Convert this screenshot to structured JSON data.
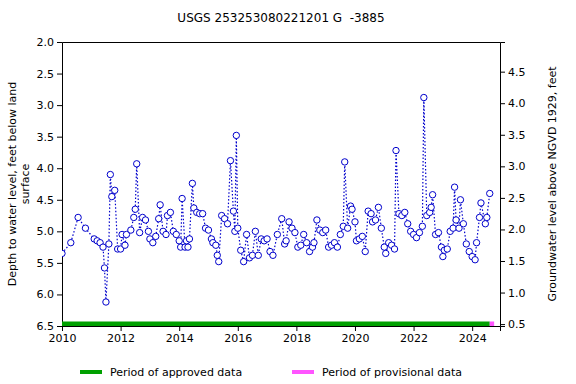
{
  "chart_data": {
    "type": "scatter",
    "title": "USGS 253253080221201 G  -3885",
    "ylabel": [
      "Depth to water level, feet below land",
      "surface"
    ],
    "y2label": "Groundwater level above NGVD 1929, feet",
    "xlim": [
      2010,
      2024.95
    ],
    "xticks": [
      2010,
      2012,
      2014,
      2016,
      2018,
      2020,
      2022,
      2024
    ],
    "ylim": [
      2.0,
      6.5
    ],
    "yticks": [
      {
        "value": 2.0,
        "label": "2.0"
      },
      2.5,
      {
        "value": 3.0,
        "label": "3.0"
      },
      3.5,
      {
        "value": 4.0,
        "label": "4.0"
      },
      4.5,
      {
        "value": 5.0,
        "label": "5.0"
      },
      5.5,
      {
        "value": 6.0,
        "label": "6.0"
      },
      6.5
    ],
    "y2lim": [
      0.47,
      4.97
    ],
    "y2ticks": [
      0.5,
      {
        "value": 1.0,
        "label": "1.0"
      },
      1.5,
      {
        "value": 2.0,
        "label": "2.0"
      },
      2.5,
      {
        "value": 3.0,
        "label": "3.0"
      },
      3.5,
      {
        "value": 4.0,
        "label": "4.0"
      },
      4.5
    ],
    "grid": false,
    "x": [
      2010.0,
      2010.3,
      2010.55,
      2010.8,
      2011.1,
      2011.2,
      2011.3,
      2011.4,
      2011.45,
      2011.5,
      2011.6,
      2011.65,
      2011.7,
      2011.8,
      2011.9,
      2012.0,
      2012.05,
      2012.15,
      2012.2,
      2012.35,
      2012.45,
      2012.5,
      2012.55,
      2012.65,
      2012.75,
      2012.85,
      2012.95,
      2013.0,
      2013.1,
      2013.2,
      2013.3,
      2013.35,
      2013.45,
      2013.55,
      2013.6,
      2013.7,
      2013.8,
      2013.9,
      2014.0,
      2014.05,
      2014.1,
      2014.2,
      2014.25,
      2014.3,
      2014.35,
      2014.45,
      2014.5,
      2014.6,
      2014.7,
      2014.8,
      2014.9,
      2015.0,
      2015.1,
      2015.15,
      2015.25,
      2015.3,
      2015.35,
      2015.45,
      2015.55,
      2015.65,
      2015.75,
      2015.85,
      2015.9,
      2015.95,
      2016.0,
      2016.1,
      2016.2,
      2016.3,
      2016.4,
      2016.5,
      2016.6,
      2016.7,
      2016.8,
      2016.9,
      2017.0,
      2017.1,
      2017.2,
      2017.35,
      2017.5,
      2017.6,
      2017.65,
      2017.75,
      2017.85,
      2017.95,
      2018.05,
      2018.15,
      2018.25,
      2018.35,
      2018.45,
      2018.55,
      2018.6,
      2018.7,
      2018.8,
      2018.9,
      2019.0,
      2019.1,
      2019.2,
      2019.3,
      2019.4,
      2019.5,
      2019.6,
      2019.65,
      2019.75,
      2019.85,
      2019.9,
      2020.0,
      2020.05,
      2020.15,
      2020.25,
      2020.35,
      2020.45,
      2020.55,
      2020.6,
      2020.7,
      2020.8,
      2020.9,
      2021.0,
      2021.05,
      2021.15,
      2021.25,
      2021.35,
      2021.4,
      2021.5,
      2021.6,
      2021.7,
      2021.8,
      2021.9,
      2022.0,
      2022.1,
      2022.2,
      2022.3,
      2022.35,
      2022.45,
      2022.55,
      2022.6,
      2022.65,
      2022.75,
      2022.85,
      2022.95,
      2023.0,
      2023.05,
      2023.15,
      2023.25,
      2023.35,
      2023.4,
      2023.45,
      2023.55,
      2023.6,
      2023.7,
      2023.8,
      2023.9,
      2024.0,
      2024.1,
      2024.15,
      2024.25,
      2024.3,
      2024.45,
      2024.5,
      2024.6
    ],
    "series": [
      {
        "color": "#0000cc",
        "marker": "circle-open",
        "line_style": "dotted",
        "values": [
          5.35,
          5.18,
          4.78,
          4.95,
          5.12,
          5.15,
          5.18,
          5.25,
          5.58,
          6.12,
          5.2,
          4.1,
          4.45,
          4.35,
          5.28,
          5.28,
          5.05,
          5.22,
          5.05,
          4.98,
          4.78,
          4.65,
          3.93,
          5.02,
          4.78,
          4.82,
          5.0,
          5.12,
          5.18,
          5.08,
          4.8,
          4.58,
          5.0,
          5.05,
          4.75,
          4.7,
          5.0,
          5.05,
          5.15,
          5.25,
          4.48,
          5.25,
          5.15,
          5.25,
          5.12,
          4.24,
          4.63,
          4.7,
          4.72,
          4.72,
          4.95,
          4.98,
          5.12,
          5.18,
          5.22,
          5.38,
          5.48,
          4.75,
          4.8,
          4.88,
          3.88,
          4.68,
          5.0,
          3.48,
          4.95,
          5.3,
          5.48,
          5.05,
          5.42,
          5.38,
          5.0,
          5.38,
          5.12,
          5.15,
          5.12,
          5.32,
          5.38,
          5.05,
          4.8,
          5.2,
          5.15,
          4.85,
          4.95,
          5.02,
          5.25,
          5.22,
          5.05,
          5.18,
          5.32,
          5.25,
          5.18,
          4.82,
          4.98,
          5.02,
          4.98,
          5.25,
          5.22,
          5.18,
          5.25,
          5.05,
          4.92,
          3.9,
          4.95,
          4.6,
          4.65,
          4.85,
          5.15,
          5.12,
          5.08,
          5.32,
          4.68,
          4.72,
          4.85,
          4.82,
          4.62,
          4.95,
          5.25,
          5.35,
          5.18,
          5.22,
          5.28,
          3.72,
          4.72,
          4.75,
          4.7,
          4.88,
          5.0,
          5.05,
          5.1,
          5.02,
          4.92,
          2.88,
          4.75,
          4.7,
          4.62,
          4.42,
          5.05,
          5.02,
          5.25,
          5.4,
          5.3,
          5.28,
          5.0,
          4.95,
          4.3,
          4.82,
          4.95,
          4.5,
          4.88,
          5.2,
          5.32,
          5.4,
          5.45,
          5.18,
          4.78,
          4.55,
          4.88,
          4.78,
          4.4
        ]
      }
    ],
    "periods": [
      {
        "name": "Period of approved data",
        "color": "#00a000",
        "start": 2010,
        "end": 2024.6
      },
      {
        "name": "Period of provisional data",
        "color": "#ff55ff",
        "start": 2024.6,
        "end": 2024.75
      }
    ]
  }
}
